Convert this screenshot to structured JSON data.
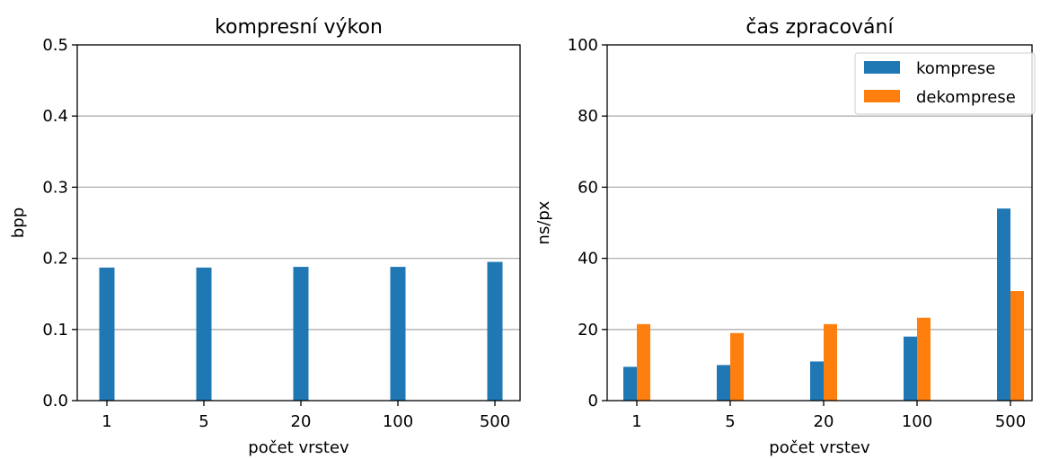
{
  "chart_data": [
    {
      "type": "bar",
      "title": "kompresní výkon",
      "xlabel": "počet vrstev",
      "ylabel": "bpp",
      "categories": [
        "1",
        "5",
        "20",
        "100",
        "500"
      ],
      "series": [
        {
          "values": [
            0.187,
            0.187,
            0.188,
            0.188,
            0.195
          ],
          "color": "#1f77b4"
        }
      ],
      "ylim": [
        0,
        0.5
      ],
      "yticks": [
        "0.0",
        "0.1",
        "0.2",
        "0.3",
        "0.4",
        "0.5"
      ],
      "grid": "horizontal"
    },
    {
      "type": "bar",
      "title": "čas zpracování",
      "xlabel": "počet vrstev",
      "ylabel": "ns/px",
      "categories": [
        "1",
        "5",
        "20",
        "100",
        "500"
      ],
      "series": [
        {
          "name": "komprese",
          "values": [
            9.5,
            10,
            11,
            18,
            54
          ],
          "color": "#1f77b4"
        },
        {
          "name": "dekomprese",
          "values": [
            21.5,
            19,
            21.5,
            23.3,
            30.8
          ],
          "color": "#ff7f0e"
        }
      ],
      "ylim": [
        0,
        100
      ],
      "yticks": [
        "0",
        "20",
        "40",
        "60",
        "80",
        "100"
      ],
      "grid": "horizontal",
      "legend": "top-right"
    }
  ]
}
